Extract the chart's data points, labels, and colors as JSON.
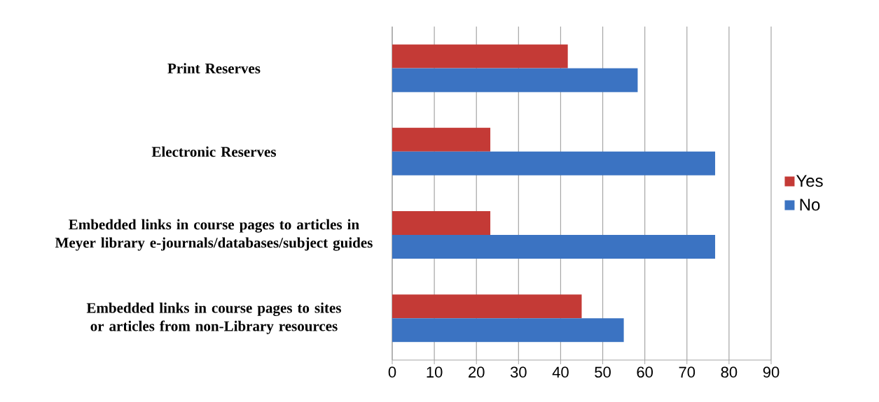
{
  "chart_data": {
    "type": "bar",
    "orientation": "horizontal",
    "categories": [
      "Print Reserves",
      "Electronic Reserves",
      "Embedded links in course pages to articles in Meyer library e-journals/databases/subject guides",
      "Embedded links in course pages to sites or articles from non-Library resources"
    ],
    "series": [
      {
        "name": "Yes",
        "color": "#c43a36",
        "values": [
          41.7,
          23.3,
          23.3,
          45.0
        ]
      },
      {
        "name": "No",
        "color": "#3b73c2",
        "values": [
          58.3,
          76.7,
          76.7,
          55.0
        ]
      }
    ],
    "xlim": [
      0,
      90
    ],
    "xticks": [
      0,
      10,
      20,
      30,
      40,
      50,
      60,
      70,
      80,
      90
    ],
    "grid": "x",
    "legend": "right"
  }
}
